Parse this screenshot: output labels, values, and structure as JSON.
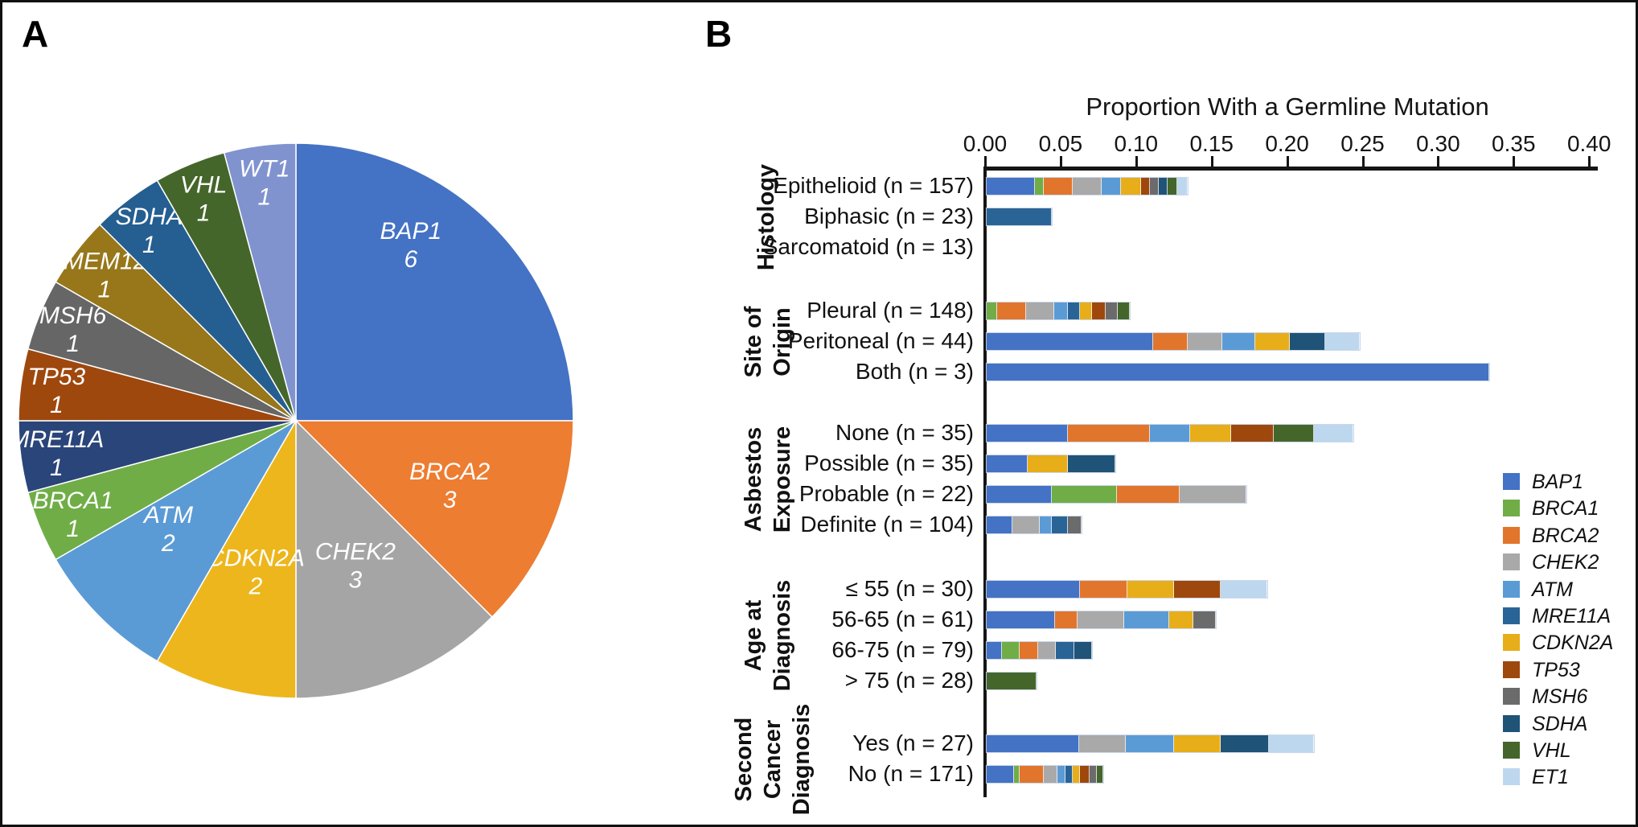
{
  "figure": {
    "panel_a_label": "A",
    "panel_b_label": "B",
    "background": "#ffffff",
    "border_color": "#000000"
  },
  "chart_data": [
    {
      "type": "pie",
      "panel": "A",
      "title": "",
      "direction": "clockwise",
      "start_angle_deg": 0,
      "label_color": "#ffffff",
      "slices": [
        {
          "label": "BAP1",
          "value": 6,
          "color": "#4472C4",
          "label_r": 0.76,
          "label_a": 33
        },
        {
          "label": "BRCA2",
          "value": 3,
          "color": "#ED7D31",
          "label_r": 0.6
        },
        {
          "label": "CHEK2",
          "value": 3,
          "color": "#A5A5A5",
          "label_r": 0.56
        },
        {
          "label": "CDKN2A",
          "value": 2,
          "color": "#EDB61C",
          "label_r": 0.56
        },
        {
          "label": "ATM",
          "value": 2,
          "color": "#5B9BD5",
          "label_r": 0.6,
          "label_a": 230
        },
        {
          "label": "BRCA1",
          "value": 1,
          "color": "#70AD47",
          "label_r": 0.87
        },
        {
          "label": "MRE11A",
          "value": 1,
          "color": "#2A4579",
          "label_r": 0.87
        },
        {
          "label": "TP53",
          "value": 1,
          "color": "#9E480E",
          "label_r": 0.87
        },
        {
          "label": "MSH6",
          "value": 1,
          "color": "#666666",
          "label_r": 0.87
        },
        {
          "label": "TMEM127",
          "value": 1,
          "color": "#97771A",
          "label_r": 0.87
        },
        {
          "label": "SDHA",
          "value": 1,
          "color": "#255E91",
          "label_r": 0.87
        },
        {
          "label": "VHL",
          "value": 1,
          "color": "#45662B",
          "label_r": 0.87
        },
        {
          "label": "WT1",
          "value": 1,
          "color": "#8093CF",
          "label_r": 0.87
        }
      ]
    },
    {
      "type": "stacked-bar-horizontal",
      "panel": "B",
      "xlabel": "Proportion With a Germline Mutation",
      "x_ticks": [
        "0.00",
        "0.05",
        "0.10",
        "0.15",
        "0.20",
        "0.25",
        "0.30",
        "0.35",
        "0.40"
      ],
      "xlim": [
        0,
        0.405
      ],
      "grid": false,
      "legend_position": "right",
      "legend": [
        {
          "label": "BAP1",
          "color": "#4472C4"
        },
        {
          "label": "BRCA1",
          "color": "#70AD47"
        },
        {
          "label": "BRCA2",
          "color": "#E2752C"
        },
        {
          "label": "CHEK2",
          "color": "#A9A9A9"
        },
        {
          "label": "ATM",
          "color": "#5B9BD5"
        },
        {
          "label": "MRE11A",
          "color": "#2A6496"
        },
        {
          "label": "CDKN2A",
          "color": "#E7AE1A"
        },
        {
          "label": "TP53",
          "color": "#9E480E"
        },
        {
          "label": "MSH6",
          "color": "#6B6B6B"
        },
        {
          "label": "SDHA",
          "color": "#1F5377"
        },
        {
          "label": "VHL",
          "color": "#45662B"
        },
        {
          "label": "ET1",
          "color": "#BDD7EE"
        }
      ],
      "groups": [
        {
          "label_lines": [
            "Histology"
          ],
          "rows": [
            {
              "label": "Epithelioid (n = 157)",
              "segments": [
                [
                  "BAP1",
                  0.032
                ],
                [
                  "BRCA1",
                  0.006
                ],
                [
                  "BRCA2",
                  0.019
                ],
                [
                  "CHEK2",
                  0.019
                ],
                [
                  "ATM",
                  0.013
                ],
                [
                  "CDKN2A",
                  0.013
                ],
                [
                  "TP53",
                  0.006
                ],
                [
                  "MSH6",
                  0.006
                ],
                [
                  "SDHA",
                  0.006
                ],
                [
                  "VHL",
                  0.006
                ],
                [
                  "ET1",
                  0.007
                ]
              ]
            },
            {
              "label": "Biphasic (n = 23)",
              "segments": [
                [
                  "MRE11A",
                  0.043
                ]
              ]
            },
            {
              "label": "Sarcomatoid (n = 13)",
              "segments": []
            }
          ]
        },
        {
          "label_lines": [
            "Site of",
            "Origin"
          ],
          "rows": [
            {
              "label": "Pleural (n = 148)",
              "segments": [
                [
                  "BRCA1",
                  0.007
                ],
                [
                  "BRCA2",
                  0.019
                ],
                [
                  "CHEK2",
                  0.019
                ],
                [
                  "ATM",
                  0.009
                ],
                [
                  "MRE11A",
                  0.008
                ],
                [
                  "CDKN2A",
                  0.008
                ],
                [
                  "TP53",
                  0.009
                ],
                [
                  "MSH6",
                  0.008
                ],
                [
                  "VHL",
                  0.008
                ]
              ]
            },
            {
              "label": "Peritoneal (n = 44)",
              "segments": [
                [
                  "BAP1",
                  0.11
                ],
                [
                  "BRCA2",
                  0.023
                ],
                [
                  "CHEK2",
                  0.023
                ],
                [
                  "ATM",
                  0.022
                ],
                [
                  "CDKN2A",
                  0.023
                ],
                [
                  "SDHA",
                  0.023
                ],
                [
                  "ET1",
                  0.023
                ]
              ]
            },
            {
              "label": "Both (n = 3)",
              "segments": [
                [
                  "BAP1",
                  0.333
                ]
              ]
            }
          ]
        },
        {
          "label_lines": [
            "Asbestos",
            "Exposure"
          ],
          "rows": [
            {
              "label": "None (n = 35)",
              "segments": [
                [
                  "BAP1",
                  0.054
                ],
                [
                  "BRCA2",
                  0.054
                ],
                [
                  "ATM",
                  0.027
                ],
                [
                  "CDKN2A",
                  0.027
                ],
                [
                  "TP53",
                  0.028
                ],
                [
                  "VHL",
                  0.027
                ],
                [
                  "ET1",
                  0.026
                ]
              ]
            },
            {
              "label": "Possible (n = 35)",
              "segments": [
                [
                  "BAP1",
                  0.027
                ],
                [
                  "CDKN2A",
                  0.027
                ],
                [
                  "SDHA",
                  0.031
                ]
              ]
            },
            {
              "label": "Probable (n = 22)",
              "segments": [
                [
                  "BAP1",
                  0.043
                ],
                [
                  "BRCA1",
                  0.043
                ],
                [
                  "BRCA2",
                  0.042
                ],
                [
                  "CHEK2",
                  0.044
                ]
              ]
            },
            {
              "label": "Definite (n = 104)",
              "segments": [
                [
                  "BAP1",
                  0.017
                ],
                [
                  "CHEK2",
                  0.018
                ],
                [
                  "ATM",
                  0.008
                ],
                [
                  "MRE11A",
                  0.011
                ],
                [
                  "MSH6",
                  0.009
                ]
              ]
            }
          ]
        },
        {
          "label_lines": [
            "Age at",
            "Diagnosis"
          ],
          "rows": [
            {
              "label": "≤ 55 (n = 30)",
              "segments": [
                [
                  "BAP1",
                  0.062
                ],
                [
                  "BRCA2",
                  0.031
                ],
                [
                  "CDKN2A",
                  0.031
                ],
                [
                  "TP53",
                  0.031
                ],
                [
                  "ET1",
                  0.031
                ]
              ]
            },
            {
              "label": "56-65 (n = 61)",
              "segments": [
                [
                  "BAP1",
                  0.045
                ],
                [
                  "BRCA2",
                  0.015
                ],
                [
                  "CHEK2",
                  0.031
                ],
                [
                  "ATM",
                  0.03
                ],
                [
                  "CDKN2A",
                  0.016
                ],
                [
                  "MSH6",
                  0.015
                ]
              ]
            },
            {
              "label": "66-75 (n = 79)",
              "segments": [
                [
                  "BAP1",
                  0.01
                ],
                [
                  "BRCA1",
                  0.012
                ],
                [
                  "BRCA2",
                  0.012
                ],
                [
                  "CHEK2",
                  0.012
                ],
                [
                  "MRE11A",
                  0.012
                ],
                [
                  "SDHA",
                  0.012
                ]
              ]
            },
            {
              "label": "> 75 (n = 28)",
              "segments": [
                [
                  "VHL",
                  0.033
                ]
              ]
            }
          ]
        },
        {
          "label_lines": [
            "Second",
            "Cancer",
            "Diagnosis"
          ],
          "rows": [
            {
              "label": "Yes (n = 27)",
              "segments": [
                [
                  "BAP1",
                  0.061
                ],
                [
                  "CHEK2",
                  0.031
                ],
                [
                  "ATM",
                  0.032
                ],
                [
                  "CDKN2A",
                  0.031
                ],
                [
                  "SDHA",
                  0.032
                ],
                [
                  "ET1",
                  0.03
                ]
              ]
            },
            {
              "label": "No (n = 171)",
              "segments": [
                [
                  "BAP1",
                  0.018
                ],
                [
                  "BRCA1",
                  0.004
                ],
                [
                  "BRCA2",
                  0.016
                ],
                [
                  "CHEK2",
                  0.009
                ],
                [
                  "ATM",
                  0.005
                ],
                [
                  "MRE11A",
                  0.005
                ],
                [
                  "CDKN2A",
                  0.005
                ],
                [
                  "TP53",
                  0.006
                ],
                [
                  "MSH6",
                  0.005
                ],
                [
                  "VHL",
                  0.004
                ]
              ]
            }
          ]
        }
      ]
    }
  ]
}
